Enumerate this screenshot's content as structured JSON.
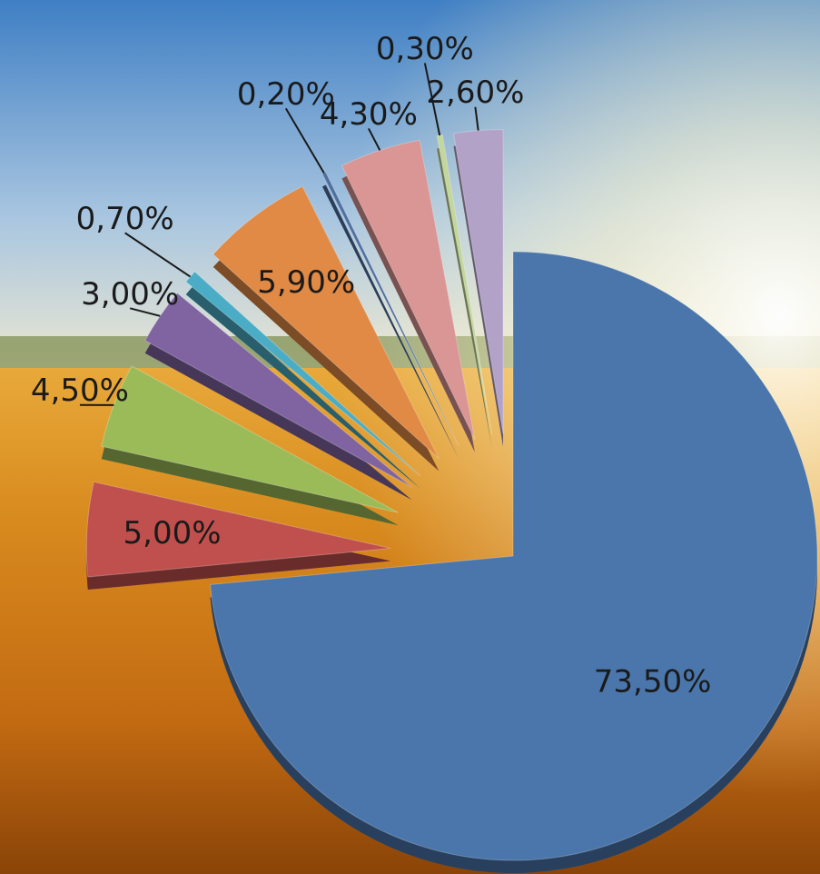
{
  "chart_data": {
    "type": "pie",
    "values": [
      73.5,
      5.0,
      4.5,
      3.0,
      0.7,
      5.9,
      0.2,
      4.3,
      0.3,
      2.6
    ],
    "value_labels": [
      "73,50%",
      "5,00%",
      "4,50%",
      "3,00%",
      "0,70%",
      "5,90%",
      "0,20%",
      "4,30%",
      "0,30%",
      "2,60%"
    ],
    "colors": [
      "#4a76ab",
      "#c0504d",
      "#9bbb59",
      "#8064a2",
      "#4bacc6",
      "#e08a45",
      "#4f6f9f",
      "#d99694",
      "#c3d69b",
      "#b3a2c7"
    ]
  }
}
